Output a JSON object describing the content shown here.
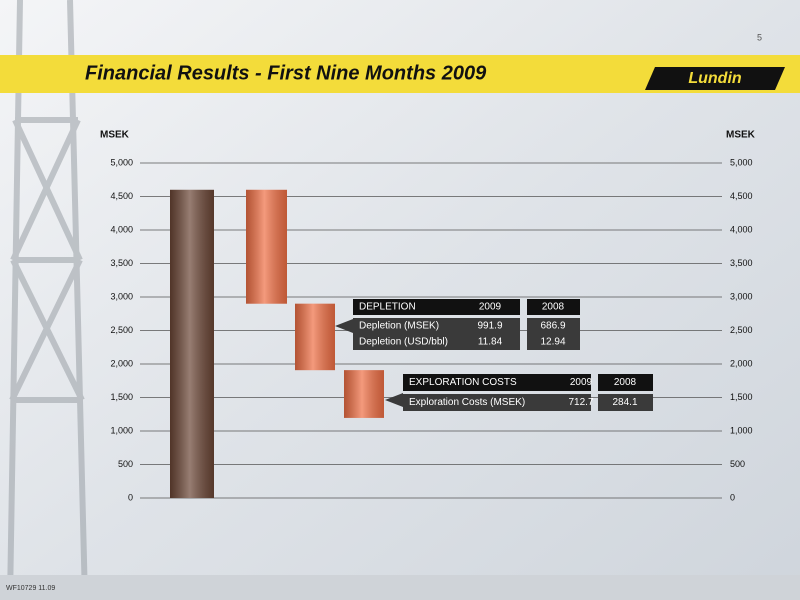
{
  "slide": {
    "page_number": "5",
    "title": "Financial Results - First Nine Months 2009",
    "logo": "Lundin",
    "footer": "WF10729 11.09"
  },
  "chart_data": {
    "type": "waterfall",
    "y_label": "MSEK",
    "categories": [
      null,
      null,
      null,
      null
    ],
    "series": [
      {
        "colors": [
          "#6b4636",
          "#ef6f45",
          "#ef6f45",
          "#ef6f45"
        ],
        "values": [
          4600,
          -1700,
          -991.9,
          -712.7
        ]
      }
    ],
    "ylim": [
      0,
      5000
    ],
    "yticks": [
      {
        "value": 0,
        "label": "0"
      },
      {
        "value": 500,
        "label": "500"
      },
      {
        "value": 1000,
        "label": "1,000"
      },
      {
        "value": 1500,
        "label": "1,500"
      },
      {
        "value": 2000,
        "label": "2,000"
      },
      {
        "value": 2500,
        "label": "2,500"
      },
      {
        "value": 3000,
        "label": "3,000"
      },
      {
        "value": 3500,
        "label": "3,500"
      },
      {
        "value": 4000,
        "label": "4,000"
      },
      {
        "value": 4500,
        "label": "4,500"
      },
      {
        "value": 5000,
        "label": "5,000"
      }
    ],
    "grid": true,
    "tables": [
      {
        "header": [
          "DEPLETION",
          2009,
          2008
        ],
        "rows": [
          [
            "Depletion (MSEK)",
            991.9,
            686.9
          ],
          [
            "Depletion (USD/bbl)",
            11.84,
            12.94
          ]
        ]
      },
      {
        "header": [
          "EXPLORATION COSTS",
          2009,
          2008
        ],
        "rows": [
          [
            "Exploration Costs (MSEK)",
            712.7,
            284.1
          ]
        ]
      }
    ]
  }
}
